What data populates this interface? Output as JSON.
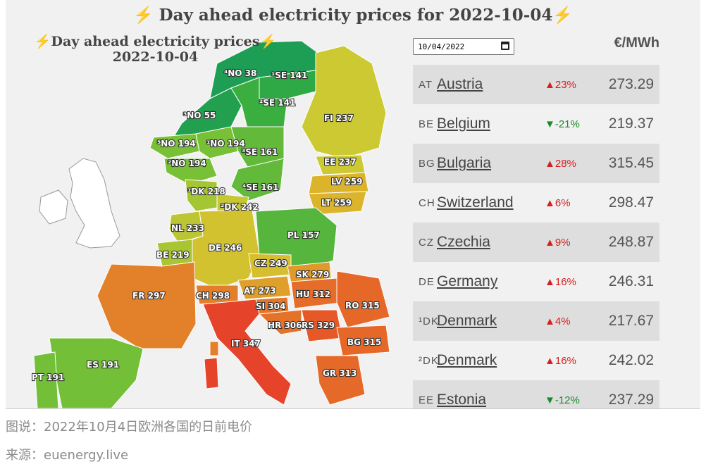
{
  "header": {
    "bolt": "⚡",
    "title": "Day ahead electricity prices for 2022-10-04"
  },
  "map": {
    "title_line1": "Day ahead electricity prices",
    "title_line2": "2022-10-04",
    "regions": [
      {
        "id": "NO4",
        "label": "⁴NO 38",
        "color": "#1e9e55"
      },
      {
        "id": "SE1",
        "label": "¹SE 141",
        "color": "#2fa846"
      },
      {
        "id": "SE2",
        "label": "²SE 141",
        "color": "#3aae3f"
      },
      {
        "id": "NO3",
        "label": "³NO 55",
        "color": "#22a04f"
      },
      {
        "id": "FI",
        "label": "FI 237",
        "color": "#ccc933"
      },
      {
        "id": "NO5",
        "label": "⁵NO 194",
        "color": "#78c036"
      },
      {
        "id": "NO1",
        "label": "¹NO 194",
        "color": "#78c036"
      },
      {
        "id": "SE3",
        "label": "³SE 161",
        "color": "#62b93a"
      },
      {
        "id": "NO2",
        "label": "²NO 194",
        "color": "#78c036"
      },
      {
        "id": "EE",
        "label": "EE 237",
        "color": "#ccc933"
      },
      {
        "id": "LV",
        "label": "LV 259",
        "color": "#dcb42c"
      },
      {
        "id": "LT",
        "label": "LT 259",
        "color": "#dcb42c"
      },
      {
        "id": "SE4",
        "label": "⁴SE 161",
        "color": "#62b93a"
      },
      {
        "id": "DK1",
        "label": "¹DK 218",
        "color": "#a5c633"
      },
      {
        "id": "DK2",
        "label": "²DK 242",
        "color": "#c6c832"
      },
      {
        "id": "NL",
        "label": "NL 233",
        "color": "#bcc533"
      },
      {
        "id": "PL",
        "label": "PL 157",
        "color": "#55b53c"
      },
      {
        "id": "DE",
        "label": "DE 246",
        "color": "#d2c230"
      },
      {
        "id": "BE",
        "label": "BE 219",
        "color": "#a8c633"
      },
      {
        "id": "CZ",
        "label": "CZ 249",
        "color": "#d6be2f"
      },
      {
        "id": "SK",
        "label": "SK 279",
        "color": "#e09a2a"
      },
      {
        "id": "FR",
        "label": "FR 297",
        "color": "#e3802a"
      },
      {
        "id": "CH",
        "label": "CH 298",
        "color": "#e37e2a"
      },
      {
        "id": "AT",
        "label": "AT 273",
        "color": "#dfa02b"
      },
      {
        "id": "HU",
        "label": "HU 312",
        "color": "#e56c29"
      },
      {
        "id": "SI",
        "label": "SI 304",
        "color": "#e47629"
      },
      {
        "id": "RO",
        "label": "RO 315",
        "color": "#e56829"
      },
      {
        "id": "HR",
        "label": "HR 306",
        "color": "#e47329"
      },
      {
        "id": "RS",
        "label": "RS 329",
        "color": "#e65828"
      },
      {
        "id": "IT",
        "label": "IT 347",
        "color": "#e5432a"
      },
      {
        "id": "BG",
        "label": "BG 315",
        "color": "#e56829"
      },
      {
        "id": "ES",
        "label": "ES 191",
        "color": "#74bf38"
      },
      {
        "id": "PT",
        "label": "PT 191",
        "color": "#74bf38"
      },
      {
        "id": "GR",
        "label": "GR 313",
        "color": "#e56a29"
      }
    ]
  },
  "controls": {
    "date_value": "10/04/2022",
    "unit": "€/MWh"
  },
  "table": {
    "rows": [
      {
        "code": "AT",
        "country": "Austria",
        "change": "▲23%",
        "direction": "up",
        "price": "273.29"
      },
      {
        "code": "BE",
        "country": "Belgium",
        "change": "▼-21%",
        "direction": "down",
        "price": "219.37"
      },
      {
        "code": "BG",
        "country": "Bulgaria",
        "change": "▲28%",
        "direction": "up",
        "price": "315.45"
      },
      {
        "code": "CH",
        "country": "Switzerland",
        "change": "▲6%",
        "direction": "up",
        "price": "298.47"
      },
      {
        "code": "CZ",
        "country": "Czechia",
        "change": "▲9%",
        "direction": "up",
        "price": "248.87"
      },
      {
        "code": "DE",
        "country": "Germany",
        "change": "▲16%",
        "direction": "up",
        "price": "246.31"
      },
      {
        "code": "¹DK",
        "country": "Denmark",
        "change": "▲4%",
        "direction": "up",
        "price": "217.67"
      },
      {
        "code": "²DK",
        "country": "Denmark",
        "change": "▲16%",
        "direction": "up",
        "price": "242.02"
      },
      {
        "code": "EE",
        "country": "Estonia",
        "change": "▼-12%",
        "direction": "down",
        "price": "237.29"
      }
    ]
  },
  "caption": "图说：2022年10月4日欧洲各国的日前电价",
  "source": "来源：euenergy.live",
  "colors": {
    "up": "#d62020",
    "down": "#1b8a2a",
    "sea": "#f1f1f1",
    "uk": "#ffffff"
  }
}
